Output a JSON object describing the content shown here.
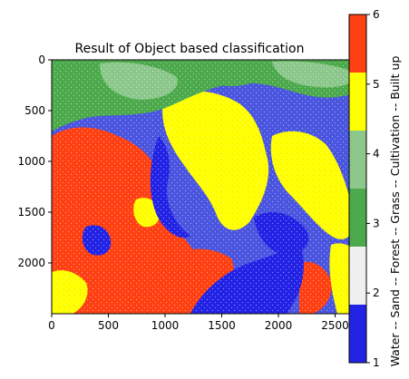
{
  "chart_data": {
    "type": "heatmap",
    "title": "Result of Object based classification",
    "xlabel": "",
    "ylabel": "",
    "xlim": [
      0,
      2720
    ],
    "ylim": [
      2500,
      0
    ],
    "x_ticks": [
      0,
      500,
      1000,
      1500,
      2000,
      2500
    ],
    "y_ticks": [
      0,
      500,
      1000,
      1500,
      2000
    ],
    "colorbar": {
      "label": "Water -- Sand -- Forest -- Grass -- Cultivation -- Built up",
      "range": [
        1,
        6
      ],
      "ticks": [
        1,
        2,
        3,
        4,
        5,
        6
      ],
      "classes": [
        {
          "name": "Water",
          "value": 1,
          "color": "#2323e6"
        },
        {
          "name": "Sand",
          "value": 2,
          "color": "#f0f0f0"
        },
        {
          "name": "Forest",
          "value": 3,
          "color": "#4caa4c"
        },
        {
          "name": "Grass",
          "value": 4,
          "color": "#8cc88c"
        },
        {
          "name": "Cultivation",
          "value": 5,
          "color": "#ffff00"
        },
        {
          "name": "Built up",
          "value": 6,
          "color": "#ff4013"
        }
      ]
    },
    "grid": false
  }
}
